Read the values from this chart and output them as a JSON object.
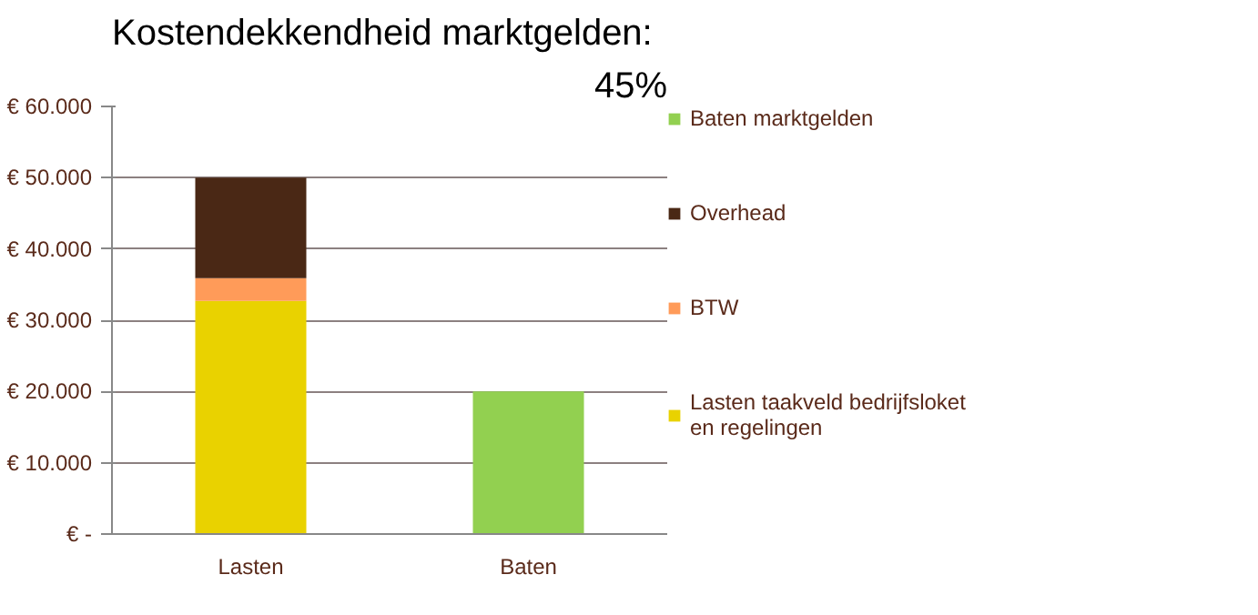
{
  "chart_data": {
    "type": "bar",
    "title": "Kostendekkendheid marktgelden:",
    "annotations": [
      "45%"
    ],
    "categories": [
      "Lasten",
      "Baten"
    ],
    "stacked": true,
    "series": [
      {
        "name": "Lasten taakveld bedrijfsloket en regelingen",
        "color": "#e9d200",
        "values": [
          32700,
          null
        ]
      },
      {
        "name": "BTW",
        "color": "#ff9b59",
        "values": [
          3200,
          null
        ]
      },
      {
        "name": "Overhead",
        "color": "#4a2815",
        "values": [
          14100,
          null
        ]
      },
      {
        "name": "Baten marktgelden",
        "color": "#92d050",
        "values": [
          null,
          20000
        ]
      }
    ],
    "ylim": [
      0,
      60000
    ],
    "yticks": [
      {
        "value": 0,
        "label": "€ -"
      },
      {
        "value": 10000,
        "label": "€ 10.000"
      },
      {
        "value": 20000,
        "label": "€ 20.000"
      },
      {
        "value": 30000,
        "label": "€ 30.000"
      },
      {
        "value": 40000,
        "label": "€ 40.000"
      },
      {
        "value": 50000,
        "label": "€ 50.000"
      },
      {
        "value": 60000,
        "label": "€ 60.000"
      }
    ],
    "grid": "y",
    "legend": "right"
  }
}
